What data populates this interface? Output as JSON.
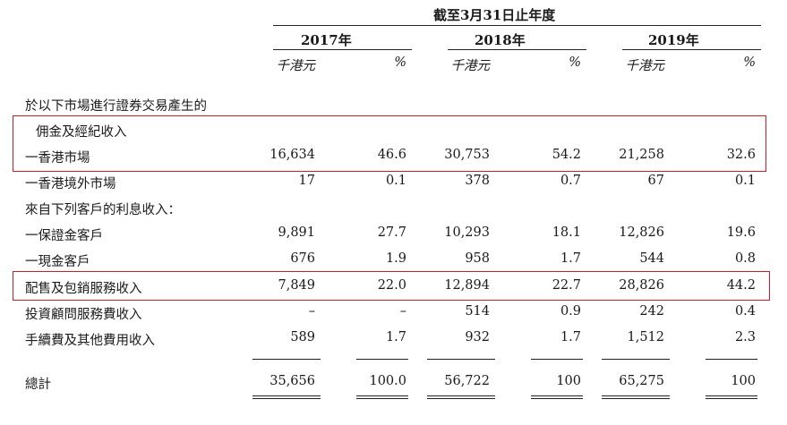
{
  "header": {
    "period": "截至3月31日止年度",
    "years": [
      "2017年",
      "2018年",
      "2019年"
    ],
    "unit_labels": [
      "千港元",
      "%",
      "千港元",
      "%",
      "千港元",
      "%"
    ]
  },
  "rows": [
    {
      "label": "於以下市場進行證券交易產生的",
      "values": []
    },
    {
      "label": "佣金及經紀收入",
      "values": []
    },
    {
      "label": "一香港市場",
      "values": [
        "16,634",
        "46.6",
        "30,753",
        "54.2",
        "21,258",
        "32.6"
      ]
    },
    {
      "label": "一香港境外市場",
      "values": [
        "17",
        "0.1",
        "378",
        "0.7",
        "67",
        "0.1"
      ]
    },
    {
      "label": "來自下列客戶的利息收入：",
      "values": []
    },
    {
      "label": "一保證金客戶",
      "values": [
        "9,891",
        "27.7",
        "10,293",
        "18.1",
        "12,826",
        "19.6"
      ]
    },
    {
      "label": "一現金客戶",
      "values": [
        "676",
        "1.9",
        "958",
        "1.7",
        "544",
        "0.8"
      ]
    },
    {
      "label": "配售及包銷服務收入",
      "values": [
        "7,849",
        "22.0",
        "12,894",
        "22.7",
        "28,826",
        "44.2"
      ]
    },
    {
      "label": "投資顧問服務費收入",
      "values": [
        "–",
        "–",
        "514",
        "0.9",
        "242",
        "0.4"
      ]
    },
    {
      "label": "手續費及其他費用收入",
      "values": [
        "589",
        "1.7",
        "932",
        "1.7",
        "1,512",
        "2.3"
      ]
    },
    {
      "label": "總計",
      "values": [
        "35,656",
        "100.0",
        "56,722",
        "100",
        "65,275",
        "100"
      ]
    }
  ]
}
